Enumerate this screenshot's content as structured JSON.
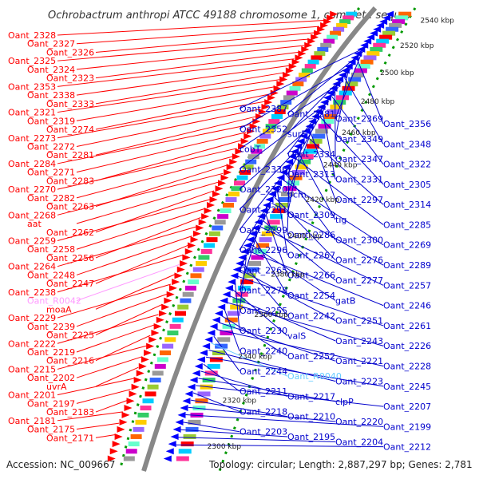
{
  "title": "Ochrobactrum anthropi ATCC 49188 chromosome 1, complete sequ...",
  "footer": {
    "accession": "Accession: NC_009667",
    "summary": "Topology: circular; Length: 2,887,297 bp; Genes: 2,781"
  },
  "colors": {
    "forward_labels": "#ff0000",
    "reverse_labels": "#0000cc",
    "rna_labels_forward": "#ff99ff",
    "rna_labels_reverse": "#66ccff",
    "backbone": "#888888",
    "gc_ticks": "#009900"
  },
  "ticks": [
    {
      "label": "2540 kbp"
    },
    {
      "label": "2520 kbp"
    },
    {
      "label": "2500 kbp"
    },
    {
      "label": "2480 kbp"
    },
    {
      "label": "2460 kbp"
    },
    {
      "label": "2440 kbp"
    },
    {
      "label": "2420 kbp"
    },
    {
      "label": "2400 kbp"
    },
    {
      "label": "2380 kbp"
    },
    {
      "label": "2360 kbp"
    },
    {
      "label": "2340 kbp"
    },
    {
      "label": "2320 kbp"
    },
    {
      "label": "2300 kbp"
    }
  ],
  "left_labels": [
    "Oant_2328",
    "Oant_2327",
    "Oant_2326",
    "Oant_2325",
    "Oant_2324",
    "Oant_2323",
    "Oant_2353",
    "Oant_2338",
    "Oant_2333",
    "Oant_2321",
    "Oant_2319",
    "Oant_2274",
    "Oant_2273",
    "Oant_2272",
    "Oant_2281",
    "Oant_2284",
    "Oant_2271",
    "Oant_2283",
    "Oant_2270",
    "Oant_2282",
    "Oant_2263",
    "Oant_2268",
    "aat",
    "Oant_2262",
    "Oant_2259",
    "Oant_2258",
    "Oant_2256",
    "Oant_2264",
    "Oant_2248",
    "Oant_2247",
    "Oant_2238",
    "Oant_R0042",
    "moaA",
    "Oant_2229",
    "Oant_2239",
    "Oant_2225",
    "Oant_2222",
    "Oant_2219",
    "Oant_2216",
    "Oant_2215",
    "Oant_2202",
    "uvrA",
    "Oant_2201",
    "Oant_2197",
    "Oant_2183",
    "Oant_2181",
    "Oant_2175",
    "Oant_2171"
  ],
  "right_labels": [
    "Oant_2387",
    "Oant_2381",
    "Oant_2369",
    "Oant_2356",
    "Oant_2352",
    "surE",
    "Oant_2349",
    "Oant_2348",
    "cobT",
    "Oant_2334",
    "Oant_2347",
    "Oant_2322",
    "Oant_2336",
    "Oant_2313",
    "Oant_2331",
    "Oant_2305",
    "Oant_2320",
    "pcm",
    "Oant_2297",
    "Oant_2314",
    "Oant_2291",
    "Oant_2309",
    "tig",
    "Oant_2285",
    "Oant_2299",
    "Oant_2286",
    "Oant_2300",
    "Oant_2269",
    "Oant_2296",
    "Oant_2267",
    "Oant_2276",
    "Oant_2289",
    "Oant_2265",
    "Oant_2266",
    "Oant_2277",
    "Oant_2257",
    "Oant_2278",
    "Oant_2254",
    "gatB",
    "Oant_2246",
    "Oant_2255",
    "Oant_2242",
    "Oant_2251",
    "Oant_2261",
    "Oant_2230",
    "valS",
    "Oant_2243",
    "Oant_2226",
    "Oant_2240",
    "Oant_2252",
    "Oant_2221",
    "Oant_2228",
    "Oant_2244",
    "Oant_R0040",
    "Oant_2223",
    "Oant_2245",
    "Oant_2211",
    "Oant_2217",
    "clpP",
    "Oant_2207",
    "Oant_2218",
    "Oant_2210",
    "Oant_2220",
    "Oant_2199",
    "Oant_2203",
    "Oant_2195",
    "Oant_2204",
    "Oant_2212"
  ]
}
